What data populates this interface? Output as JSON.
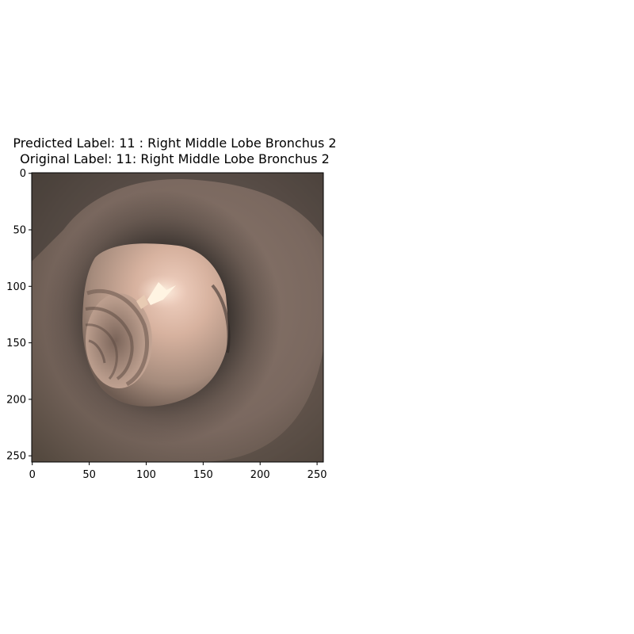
{
  "figure": {
    "title_lines": [
      "Predicted Label: 11 : Right Middle Lobe Bronchus 2",
      "Original Label: 11: Right Middle Lobe Bronchus 2"
    ]
  },
  "image_panel": {
    "content": "bronchoscopy-airway-view",
    "x_ticks": [
      "0",
      "50",
      "100",
      "150",
      "200",
      "250"
    ],
    "y_ticks": [
      "0",
      "50",
      "100",
      "150",
      "200",
      "250"
    ],
    "pixel_extent": [
      0,
      255
    ],
    "colors": {
      "wall": "#7b6860",
      "wall_dark": "#3a3431",
      "lumen_light": "#d9b8a8",
      "highlight": "#fff2dc"
    }
  }
}
